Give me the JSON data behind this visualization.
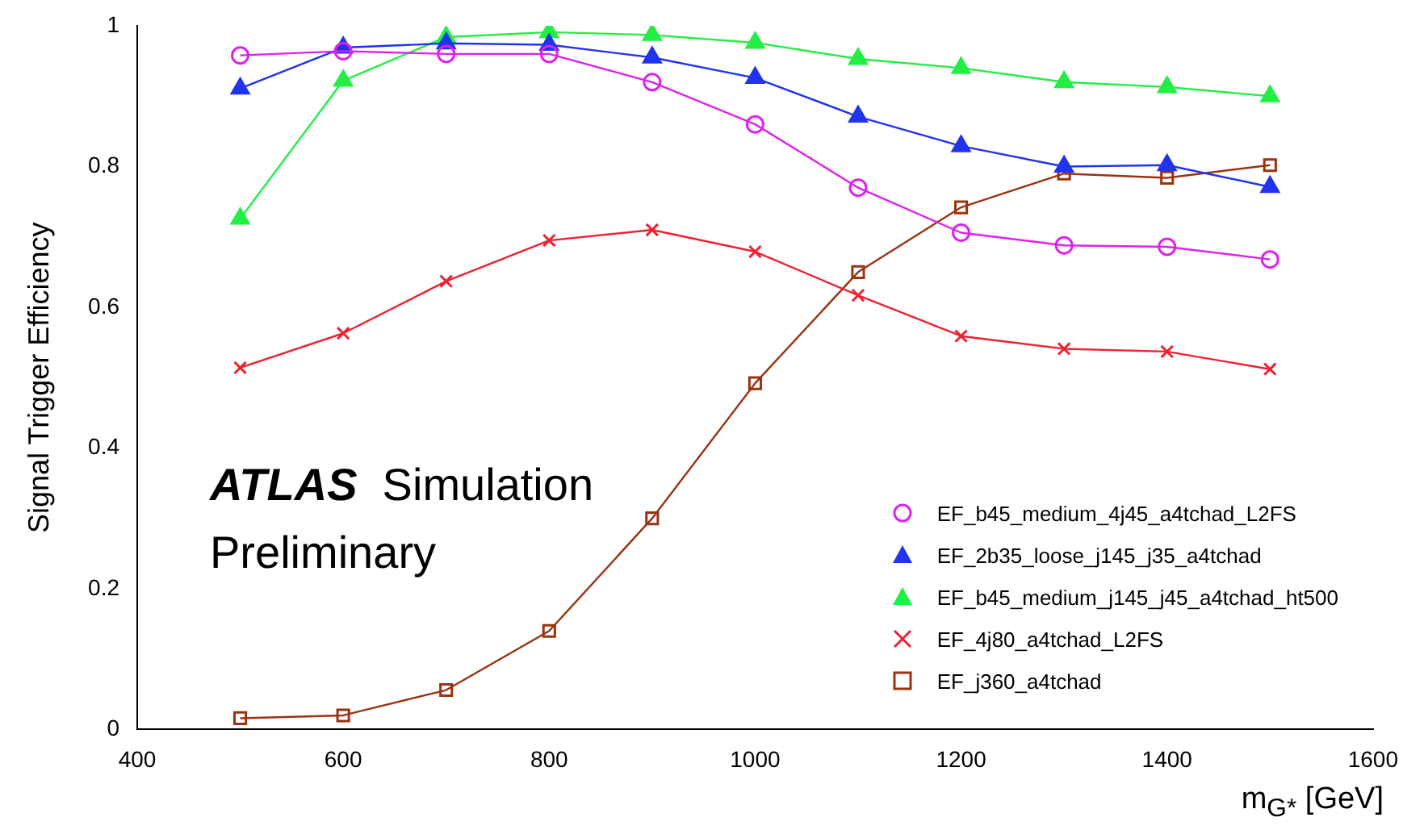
{
  "chart_data": {
    "type": "line",
    "xlabel": "m$_{G*}$ [GeV]",
    "ylabel": "Signal Trigger Efficiency",
    "x": [
      500,
      600,
      700,
      800,
      900,
      1000,
      1100,
      1200,
      1300,
      1400,
      1500
    ],
    "xlim": [
      400,
      1600
    ],
    "xticks": [
      400,
      600,
      800,
      1000,
      1200,
      1400,
      1600
    ],
    "ylim": [
      0,
      1
    ],
    "yticks": [
      0,
      0.2,
      0.4,
      0.6,
      0.8,
      1
    ],
    "grid": false,
    "legend": "bottom right",
    "line_style": "solid",
    "annotations": [
      "ATLAS Simulation",
      "Preliminary"
    ],
    "series": [
      {
        "name": "EF_b45_medium_4j45_a4tchad_L2FS",
        "color": "#dd22ee",
        "marker": "circle",
        "values": [
          0.958,
          0.964,
          0.96,
          0.96,
          0.92,
          0.86,
          0.77,
          0.706,
          0.688,
          0.686,
          0.668
        ]
      },
      {
        "name": "EF_2b35_loose_j145_j35_a4tchad",
        "color": "#2233ee",
        "marker": "triangle",
        "values": [
          0.911,
          0.969,
          0.975,
          0.973,
          0.955,
          0.926,
          0.871,
          0.829,
          0.8,
          0.802,
          0.771
        ]
      },
      {
        "name": "EF_b45_medium_j145_j45_a4tchad_ht500",
        "color": "#22ee44",
        "marker": "triangle",
        "values": [
          0.726,
          0.922,
          0.984,
          0.991,
          0.987,
          0.976,
          0.953,
          0.94,
          0.92,
          0.913,
          0.9
        ]
      },
      {
        "name": "EF_4j80_a4tchad_L2FS",
        "color": "#ee2233",
        "marker": "cross",
        "values": [
          0.514,
          0.563,
          0.637,
          0.695,
          0.71,
          0.679,
          0.617,
          0.559,
          0.541,
          0.537,
          0.512
        ]
      },
      {
        "name": "EF_j360_a4tchad",
        "color": "#993311",
        "marker": "square",
        "values": [
          0.016,
          0.02,
          0.056,
          0.14,
          0.3,
          0.492,
          0.65,
          0.742,
          0.79,
          0.784,
          0.802
        ]
      }
    ]
  }
}
